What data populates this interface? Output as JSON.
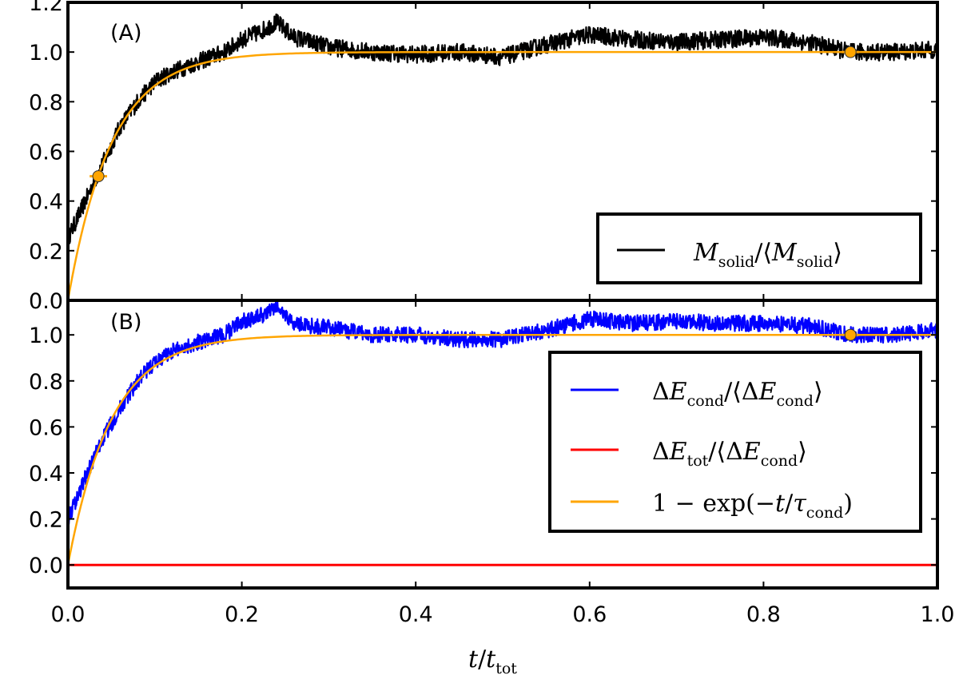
{
  "chart_data": [
    {
      "type": "line",
      "panel_label": "(A)",
      "xlim": [
        0.0,
        1.0
      ],
      "ylim": [
        0.0,
        1.2
      ],
      "yticks": [
        "0.0",
        "0.2",
        "0.4",
        "0.6",
        "0.8",
        "1.0",
        "1.2"
      ],
      "legend_position": "right",
      "series": [
        {
          "name": "M_solid/<M_solid>",
          "color": "#000000",
          "x": [
            0.0,
            0.02,
            0.04,
            0.06,
            0.08,
            0.1,
            0.12,
            0.15,
            0.18,
            0.2,
            0.22,
            0.24,
            0.26,
            0.3,
            0.35,
            0.4,
            0.45,
            0.5,
            0.55,
            0.6,
            0.65,
            0.7,
            0.75,
            0.8,
            0.85,
            0.9,
            0.95,
            1.0
          ],
          "values": [
            0.25,
            0.4,
            0.55,
            0.7,
            0.8,
            0.88,
            0.92,
            0.96,
            1.0,
            1.05,
            1.08,
            1.12,
            1.06,
            1.02,
            1.0,
            0.99,
            1.0,
            0.98,
            1.03,
            1.07,
            1.05,
            1.04,
            1.05,
            1.06,
            1.04,
            1.0,
            1.0,
            1.01
          ]
        },
        {
          "name": "1-exp(-t/tau_cond)",
          "color": "#ffa500",
          "function": "1-exp(-t/tau)",
          "tau": 0.05
        }
      ],
      "markers": [
        {
          "x": 0.035,
          "y": 0.5,
          "xerr": 0.01,
          "yerr": 0.02,
          "color": "#ffa500"
        },
        {
          "x": 0.9,
          "y": 1.0,
          "xerr": 0.01,
          "yerr": 0.02,
          "color": "#ffa500"
        }
      ],
      "legend": [
        {
          "label": "M_solid/<M_solid>",
          "color": "#000000"
        }
      ]
    },
    {
      "type": "line",
      "panel_label": "(B)",
      "xlim": [
        0.0,
        1.0
      ],
      "ylim": [
        -0.1,
        1.15
      ],
      "xticks": [
        "0.0",
        "0.2",
        "0.4",
        "0.6",
        "0.8",
        "1.0"
      ],
      "yticks": [
        "0.0",
        "0.2",
        "0.4",
        "0.6",
        "0.8",
        "1.0"
      ],
      "xlabel": "t/t_tot",
      "legend_position": "right",
      "series": [
        {
          "name": "ΔE_cond/<ΔE_cond>",
          "color": "#0000ff",
          "x": [
            0.0,
            0.02,
            0.04,
            0.06,
            0.08,
            0.1,
            0.12,
            0.15,
            0.18,
            0.2,
            0.22,
            0.24,
            0.26,
            0.3,
            0.35,
            0.4,
            0.45,
            0.5,
            0.55,
            0.6,
            0.65,
            0.7,
            0.75,
            0.8,
            0.85,
            0.9,
            0.95,
            1.0
          ],
          "values": [
            0.2,
            0.38,
            0.55,
            0.68,
            0.8,
            0.88,
            0.93,
            0.97,
            1.0,
            1.06,
            1.08,
            1.12,
            1.05,
            1.03,
            1.0,
            1.0,
            0.98,
            0.98,
            1.02,
            1.07,
            1.05,
            1.06,
            1.05,
            1.05,
            1.04,
            1.0,
            1.0,
            1.02
          ]
        },
        {
          "name": "ΔE_tot/<ΔE_cond>",
          "color": "#ff0000",
          "x": [
            0.0,
            1.0
          ],
          "values": [
            0.0,
            0.0
          ]
        },
        {
          "name": "1-exp(-t/tau_cond)",
          "color": "#ffa500",
          "function": "1-exp(-t/tau)",
          "tau": 0.05
        }
      ],
      "markers": [
        {
          "x": 0.9,
          "y": 1.0,
          "xerr": 0.01,
          "yerr": 0.02,
          "color": "#ffa500"
        }
      ],
      "legend": [
        {
          "label": "ΔE_cond/<ΔE_cond>",
          "color": "#0000ff"
        },
        {
          "label": "ΔE_tot/<ΔE_cond>",
          "color": "#ff0000"
        },
        {
          "label": "1-exp(-t/tau_cond)",
          "color": "#ffa500"
        }
      ]
    }
  ]
}
